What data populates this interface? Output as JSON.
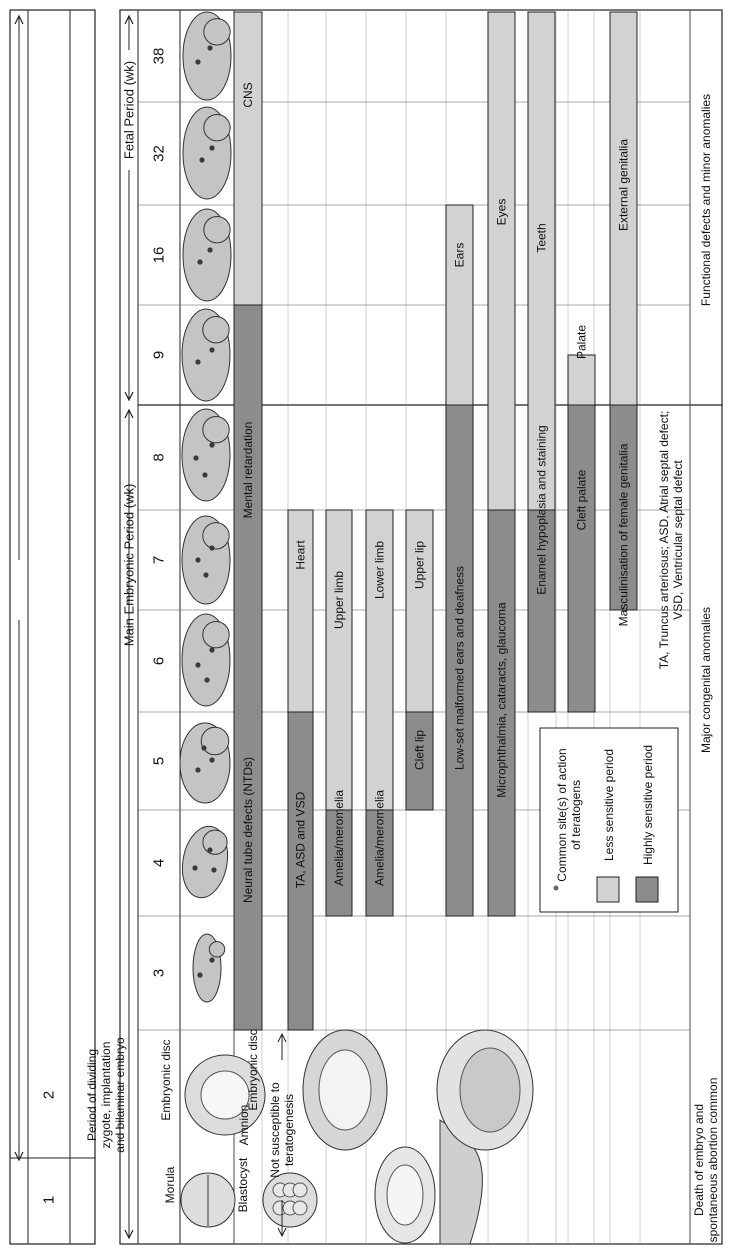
{
  "colors": {
    "highly_sensitive": "#8c8c8c",
    "less_sensitive": "#d2d2d2",
    "stroke": "#222222",
    "embryo_fill": "#c4c4c4",
    "site_dot": "#3a3a3a"
  },
  "pre_embryonic": {
    "weeks": [
      "1",
      "2"
    ],
    "header": "Period of dividing zygote, implantation and bilaminar embryo",
    "header_lines": [
      "Period of dividing",
      "zygote, implantation",
      "and bilaminar embryo"
    ],
    "labels": {
      "morula": "Morula",
      "blastocyst": "Blastocyst",
      "embryonic_disc_1": "Embryonic disc",
      "amnion": "Amnion",
      "embryonic_disc_2": "Embryonic disc"
    },
    "not_susceptible": "Not susceptible to teratogenesis",
    "not_susceptible_lines": [
      "Not susceptible to",
      "teratogenesis"
    ],
    "footer": "Death of embryo and spontaneous abortion common",
    "footer_lines": [
      "Death of embryo and",
      "spontaneous abortion common"
    ]
  },
  "embryonic_period": {
    "title": "Main Embryonic Period (wk)",
    "weeks": [
      "3",
      "4",
      "5",
      "6",
      "7",
      "8"
    ],
    "footer": "Major congenital anomalies"
  },
  "fetal_period": {
    "title": "Fetal Period (wk)",
    "weeks": [
      "9",
      "16",
      "32",
      "38"
    ],
    "footer": "Functional defects and minor anomalies"
  },
  "bars": [
    {
      "organ": "CNS",
      "high_label": "Neural tube defects (NTDs)",
      "mid_label": "Mental retardation",
      "less_label": "CNS",
      "high_range": [
        3,
        16
      ],
      "less_range": [
        16,
        38
      ]
    },
    {
      "organ": "Heart",
      "high_label": "TA, ASD and VSD",
      "less_label": "Heart",
      "high_range": [
        3,
        6
      ],
      "less_range": [
        6,
        8
      ]
    },
    {
      "organ": "Upper limb",
      "high_label": "Amelia/meromelia",
      "less_label": "Upper limb",
      "high_range": [
        4,
        5
      ],
      "less_range": [
        5,
        8
      ]
    },
    {
      "organ": "Lower limb",
      "high_label": "Amelia/meromelia",
      "less_label": "Lower limb",
      "high_range": [
        4,
        5
      ],
      "less_range": [
        5,
        8
      ]
    },
    {
      "organ": "Upper lip",
      "high_label": "Cleft lip",
      "less_label": "Upper lip",
      "high_range": [
        5,
        6
      ],
      "less_range": [
        6,
        8
      ]
    },
    {
      "organ": "Ears",
      "high_label": "Low-set malformed ears and deafness",
      "less_label": "Ears",
      "high_range": [
        4,
        9
      ],
      "less_range": [
        9,
        32
      ]
    },
    {
      "organ": "Eyes",
      "high_label": "Microphthalmia, cataracts, glaucoma",
      "less_label": "Eyes",
      "high_range": [
        4,
        8
      ],
      "less_range": [
        8,
        38
      ]
    },
    {
      "organ": "Teeth",
      "high_label": "Enamel hypoplasia and staining",
      "less_label": "Teeth",
      "high_range": [
        6,
        8
      ],
      "less_range": [
        8,
        38
      ]
    },
    {
      "organ": "Palate",
      "high_label": "Cleft palate",
      "less_label": "Palate",
      "high_range": [
        6,
        9
      ],
      "less_range": [
        9,
        9.5
      ]
    },
    {
      "organ": "External genitalia",
      "high_label": "Masculinisation of female genitalia",
      "less_label": "External genitalia",
      "high_range": [
        7,
        9
      ],
      "less_range": [
        9,
        38
      ]
    }
  ],
  "legend": {
    "site": "Common site(s) of action of teratogens",
    "site_lines": [
      "Common site(s) of action",
      "of teratogens"
    ],
    "less": "Less sensitive period",
    "high": "Highly sensitive period"
  },
  "abbreviations": "TA, Truncus arteriosus; ASD, Atrial septal defect; VSD, Ventricular septal defect",
  "abbreviation_lines": [
    "TA, Truncus arteriosus; ASD, Atrial septal defect;",
    "VSD, Ventricular septal defect"
  ]
}
